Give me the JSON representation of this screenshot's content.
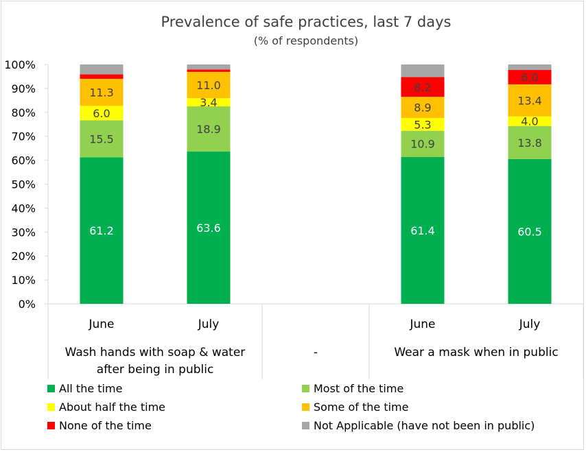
{
  "chart_data": {
    "type": "bar",
    "stacked": true,
    "title": "Prevalence of safe practices, last 7 days",
    "subtitle": "(% of respondents)",
    "ylim": [
      0,
      100
    ],
    "yticks": [
      "0%",
      "10%",
      "20%",
      "30%",
      "40%",
      "50%",
      "60%",
      "70%",
      "80%",
      "90%",
      "100%"
    ],
    "grid": false,
    "legend_position": "bottom",
    "groups": [
      {
        "label": "Wash hands with soap & water after being in public",
        "lines": [
          "Wash hands with soap & water",
          "after being in public"
        ],
        "categories": [
          "June",
          "July"
        ]
      },
      {
        "label": "-",
        "lines": [
          "-"
        ],
        "categories": []
      },
      {
        "label": "Wear a mask when in public",
        "lines": [
          "Wear a mask when in public"
        ],
        "categories": [
          "June",
          "July"
        ]
      }
    ],
    "categories": [
      "June",
      "July",
      "June",
      "July"
    ],
    "series": [
      {
        "name": "All the time",
        "color": "#00b050",
        "values": [
          61.2,
          63.6,
          61.4,
          60.5
        ],
        "labels": [
          "61.2",
          "63.6",
          "61.4",
          "60.5"
        ],
        "label_color": "#ffffff"
      },
      {
        "name": "Most of the time",
        "color": "#92d050",
        "values": [
          15.5,
          18.9,
          10.9,
          13.8
        ],
        "labels": [
          "15.5",
          "18.9",
          "10.9",
          "13.8"
        ],
        "label_color": "#404040"
      },
      {
        "name": "About half the time",
        "color": "#ffff00",
        "values": [
          6.0,
          3.4,
          5.3,
          4.0
        ],
        "labels": [
          "6.0",
          "3.4",
          "5.3",
          "4.0"
        ],
        "label_color": "#404040"
      },
      {
        "name": "Some of the time",
        "color": "#ffc000",
        "values": [
          11.3,
          11.0,
          8.9,
          13.4
        ],
        "labels": [
          "11.3",
          "11.0",
          "8.9",
          "13.4"
        ],
        "label_color": "#404040"
      },
      {
        "name": "None of the time",
        "color": "#ff0000",
        "values": [
          1.9,
          1.0,
          8.2,
          6.0
        ],
        "labels": [
          "",
          "",
          "8.2",
          "6.0"
        ],
        "label_color": "#404040"
      },
      {
        "name": "Not Applicable (have not been in public)",
        "color": "#a6a6a6",
        "values": [
          4.1,
          2.1,
          5.3,
          2.3
        ],
        "labels": [
          "",
          "",
          "",
          ""
        ],
        "label_color": "#404040"
      }
    ]
  }
}
